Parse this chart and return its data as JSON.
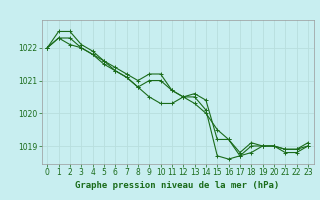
{
  "title": "Graphe pression niveau de la mer (hPa)",
  "background_color": "#c8eef0",
  "grid_color": "#b8dede",
  "line_color": "#1a6b1a",
  "series": [
    [
      1022.0,
      1022.3,
      1022.3,
      1022.0,
      1021.8,
      1021.5,
      1021.3,
      1021.1,
      1020.8,
      1021.0,
      1021.0,
      1020.7,
      1020.5,
      1020.5,
      1020.1,
      1018.7,
      1018.6,
      1018.7,
      1019.0,
      1019.0,
      1019.0,
      1018.8,
      1018.8,
      1019.0
    ],
    [
      1022.0,
      1022.5,
      1022.5,
      1022.1,
      1021.9,
      1021.6,
      1021.4,
      1021.2,
      1021.0,
      1021.2,
      1021.2,
      1020.7,
      1020.5,
      1020.6,
      1020.4,
      1019.2,
      1019.2,
      1018.8,
      1019.1,
      1019.0,
      1019.0,
      1018.9,
      1018.9,
      1019.1
    ],
    [
      1022.0,
      1022.3,
      1022.1,
      1022.0,
      1021.8,
      1021.6,
      1021.3,
      1021.1,
      1020.8,
      1020.5,
      1020.3,
      1020.3,
      1020.5,
      1020.3,
      1020.0,
      1019.5,
      1019.2,
      1018.7,
      1018.8,
      1019.0,
      1019.0,
      1018.9,
      1018.9,
      1019.0
    ]
  ],
  "xlim": [
    -0.5,
    23.5
  ],
  "ylim": [
    1018.45,
    1022.85
  ],
  "yticks": [
    1019,
    1020,
    1021,
    1022
  ],
  "xticks": [
    0,
    1,
    2,
    3,
    4,
    5,
    6,
    7,
    8,
    9,
    10,
    11,
    12,
    13,
    14,
    15,
    16,
    17,
    18,
    19,
    20,
    21,
    22,
    23
  ],
  "tick_fontsize": 5.5,
  "title_fontsize": 6.5,
  "marker": "+",
  "marker_size": 3,
  "line_width": 0.8
}
